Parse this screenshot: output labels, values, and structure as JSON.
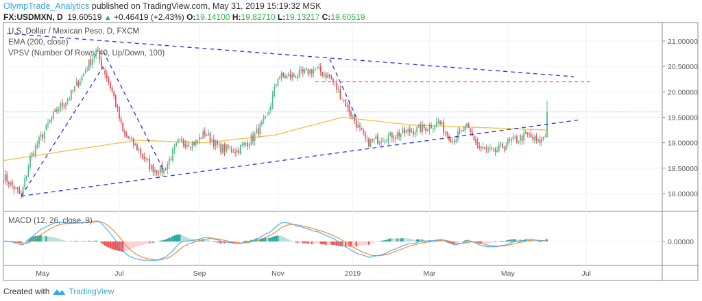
{
  "header": {
    "author": "OlympTrade_Analytics",
    "published": "published on TradingView.com, May 31, 2019 15:19:32 MSK",
    "symbol": "FX:USDMXN, D",
    "last": "19.60519",
    "change": "+0.46419 (+2.43%)",
    "o_label": "O:",
    "o": "19.14100",
    "h_label": "H:",
    "h": "19.82710",
    "l_label": "L:",
    "l": "19.13217",
    "c_label": "C:",
    "c": "19.60519"
  },
  "legends": {
    "title": "U.S. Dollar / Mexican Peso, D, FXCM",
    "ema": "EMA (200, close)",
    "vpsv": "VPSV (Number Of Rows, 40, Up/Down, 100)",
    "macd": "MACD (12, 26, close, 9)"
  },
  "footer": {
    "created": "Created with",
    "brand": "TradingView"
  },
  "colors": {
    "up": "#53b987",
    "down": "#eb4d5c",
    "ema": "#f0c040",
    "trend": "#2b2bf0",
    "magenta": "#ff40ff",
    "macd": "#4ab0f5",
    "signal": "#f5883a",
    "last_line": "#7ecfcf"
  },
  "chart_data": {
    "type": "candlestick",
    "title": "U.S. Dollar / Mexican Peso, D, FXCM",
    "ylim": [
      17.65,
      21.4
    ],
    "price_ticks": [
      "21.00000",
      "20.50000",
      "20.00000",
      "19.50000",
      "19.00000",
      "18.50000",
      "18.00000"
    ],
    "price_tick_values": [
      21.0,
      20.5,
      20.0,
      19.5,
      19.0,
      18.5,
      18.0
    ],
    "macd_ticks": [
      "0.00000"
    ],
    "x_ticks": [
      {
        "label": "May",
        "bar": 22
      },
      {
        "label": "Jul",
        "bar": 65
      },
      {
        "label": "Sep",
        "bar": 110
      },
      {
        "label": "Nov",
        "bar": 154
      },
      {
        "label": "2019",
        "bar": 196
      },
      {
        "label": "Mar",
        "bar": 239
      },
      {
        "label": "May",
        "bar": 283
      },
      {
        "label": "Jul",
        "bar": 327
      }
    ],
    "bars": 306,
    "close_waypoints": [
      [
        0,
        18.35
      ],
      [
        4,
        18.2
      ],
      [
        10,
        17.95
      ],
      [
        15,
        18.7
      ],
      [
        21,
        19.1
      ],
      [
        29,
        19.6
      ],
      [
        37,
        19.9
      ],
      [
        44,
        20.3
      ],
      [
        52,
        20.8
      ],
      [
        58,
        20.3
      ],
      [
        62,
        19.9
      ],
      [
        67,
        19.2
      ],
      [
        75,
        18.9
      ],
      [
        83,
        18.5
      ],
      [
        90,
        18.45
      ],
      [
        98,
        19.0
      ],
      [
        108,
        19.0
      ],
      [
        113,
        19.2
      ],
      [
        121,
        18.9
      ],
      [
        131,
        18.85
      ],
      [
        140,
        19.1
      ],
      [
        148,
        19.5
      ],
      [
        154,
        20.3
      ],
      [
        160,
        20.3
      ],
      [
        167,
        20.35
      ],
      [
        175,
        20.45
      ],
      [
        183,
        20.3
      ],
      [
        190,
        19.9
      ],
      [
        196,
        19.5
      ],
      [
        204,
        19.0
      ],
      [
        213,
        19.1
      ],
      [
        225,
        19.2
      ],
      [
        237,
        19.3
      ],
      [
        244,
        19.4
      ],
      [
        252,
        19.05
      ],
      [
        260,
        19.3
      ],
      [
        267,
        18.9
      ],
      [
        275,
        18.8
      ],
      [
        283,
        19.0
      ],
      [
        294,
        19.15
      ],
      [
        300,
        19.0
      ],
      [
        304,
        19.14
      ],
      [
        305,
        19.605
      ]
    ],
    "ema200_waypoints": [
      [
        0,
        18.65
      ],
      [
        37,
        18.85
      ],
      [
        75,
        19.05
      ],
      [
        113,
        19.0
      ],
      [
        152,
        19.15
      ],
      [
        190,
        19.5
      ],
      [
        229,
        19.35
      ],
      [
        267,
        19.3
      ],
      [
        305,
        19.25
      ]
    ],
    "last_price": 19.60519,
    "drawings": [
      {
        "kind": "dashed",
        "from": [
          2,
          21.15
        ],
        "to": [
          320,
          20.3
        ]
      },
      {
        "kind": "dashed",
        "from": [
          10,
          17.95
        ],
        "to": [
          323,
          19.45
        ]
      },
      {
        "kind": "dashed",
        "from": [
          10,
          17.95
        ],
        "to": [
          56,
          20.5
        ]
      },
      {
        "kind": "dashed",
        "from": [
          56,
          20.8
        ],
        "to": [
          90,
          18.45
        ]
      },
      {
        "kind": "dashed",
        "from": [
          183,
          20.65
        ],
        "to": [
          198,
          19.5
        ]
      },
      {
        "kind": "horizontal-magenta",
        "from": [
          175,
          20.2
        ],
        "to": [
          330,
          20.2
        ]
      }
    ]
  }
}
